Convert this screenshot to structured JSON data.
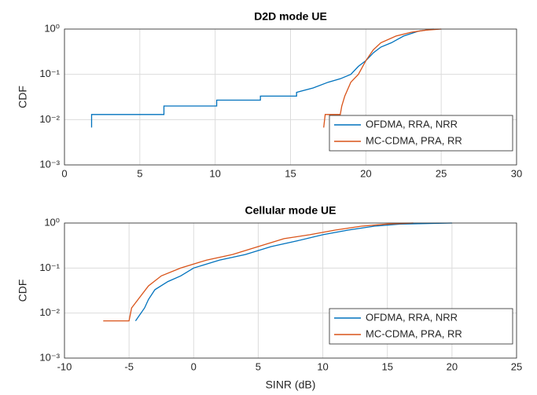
{
  "chart_data": [
    {
      "type": "line",
      "title": "D2D mode UE",
      "ylabel": "CDF",
      "yscale": "log",
      "grid": true,
      "legend": "lower right",
      "xlim": [
        0,
        30
      ],
      "xticks": [
        0,
        5,
        10,
        15,
        20,
        25,
        30
      ],
      "ylim": [
        0.001,
        1
      ],
      "yticks": [
        {
          "value": 0.001,
          "label": "10⁻³"
        },
        {
          "value": 0.01,
          "label": "10⁻²"
        },
        {
          "value": 0.1,
          "label": "10⁻¹"
        },
        {
          "value": 1,
          "label": "10⁰"
        }
      ],
      "series": [
        {
          "name": "OFDMA, RRA, NRR",
          "color": "#0072bd",
          "x": [
            1.8,
            1.8,
            6.6,
            6.6,
            10.1,
            10.1,
            13,
            13,
            15.4,
            15.4,
            16.5,
            17.5,
            18.3,
            19,
            19.5,
            20,
            20.5,
            21,
            21.7,
            22.5,
            23.5,
            24.5
          ],
          "values": [
            0.0067,
            0.013,
            0.013,
            0.02,
            0.02,
            0.027,
            0.027,
            0.033,
            0.033,
            0.04,
            0.05,
            0.067,
            0.08,
            0.1,
            0.15,
            0.2,
            0.3,
            0.4,
            0.5,
            0.7,
            0.9,
            1
          ]
        },
        {
          "name": "MC-CDMA, PRA, RR",
          "color": "#d95319",
          "x": [
            17.2,
            17.3,
            18.3,
            18.4,
            18.6,
            19,
            19.5,
            20,
            20.5,
            21,
            22,
            23,
            24,
            25
          ],
          "values": [
            0.0067,
            0.013,
            0.013,
            0.02,
            0.033,
            0.067,
            0.1,
            0.2,
            0.35,
            0.5,
            0.7,
            0.85,
            0.95,
            1
          ]
        }
      ]
    },
    {
      "type": "line",
      "title": "Cellular mode UE",
      "xlabel": "SINR (dB)",
      "ylabel": "CDF",
      "yscale": "log",
      "grid": true,
      "legend": "lower right",
      "xlim": [
        -10,
        25
      ],
      "xticks": [
        -10,
        -5,
        0,
        5,
        10,
        15,
        20,
        25
      ],
      "ylim": [
        0.001,
        1
      ],
      "yticks": [
        {
          "value": 0.001,
          "label": "10⁻³"
        },
        {
          "value": 0.01,
          "label": "10⁻²"
        },
        {
          "value": 0.1,
          "label": "10⁻¹"
        },
        {
          "value": 1,
          "label": "10⁰"
        }
      ],
      "series": [
        {
          "name": "OFDMA, RRA, NRR",
          "color": "#0072bd",
          "x": [
            -4.5,
            -3.8,
            -3.5,
            -3,
            -2,
            -1,
            0,
            2,
            4,
            6,
            8,
            10,
            12,
            14,
            16,
            20
          ],
          "values": [
            0.0067,
            0.013,
            0.02,
            0.033,
            0.05,
            0.067,
            0.1,
            0.15,
            0.2,
            0.3,
            0.4,
            0.55,
            0.7,
            0.85,
            0.95,
            1
          ]
        },
        {
          "name": "MC-CDMA, PRA, RR",
          "color": "#d95319",
          "x": [
            -7,
            -5,
            -4.8,
            -4.3,
            -3.5,
            -2.5,
            -1,
            1,
            3,
            5,
            7,
            9,
            11,
            13,
            15,
            17
          ],
          "values": [
            0.0067,
            0.0067,
            0.013,
            0.02,
            0.04,
            0.067,
            0.1,
            0.15,
            0.2,
            0.3,
            0.45,
            0.55,
            0.7,
            0.85,
            0.95,
            1
          ]
        }
      ]
    }
  ]
}
